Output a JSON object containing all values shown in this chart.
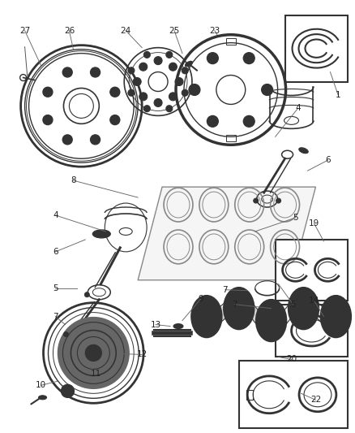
{
  "bg_color": "#ffffff",
  "fig_width": 4.38,
  "fig_height": 5.33,
  "dpi": 100,
  "lc": "#444444",
  "pc": "#555555",
  "fs": 7.5
}
